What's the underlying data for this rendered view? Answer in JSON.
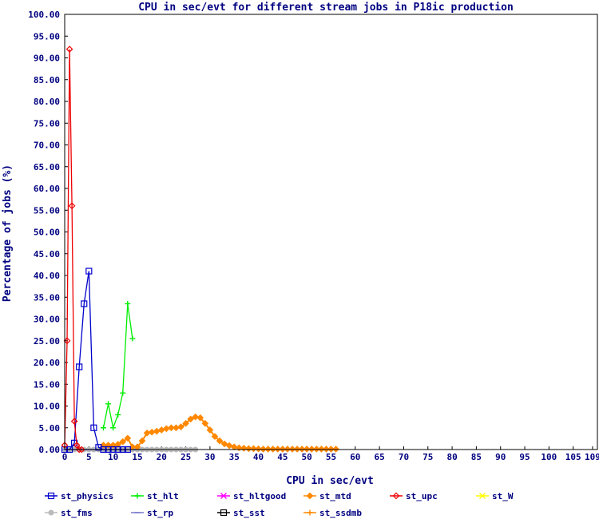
{
  "chart_data": {
    "type": "line",
    "title": "CPU in sec/evt for different stream jobs in P18ic production",
    "xlabel": "CPU in sec/evt",
    "ylabel": "Percentage of jobs (%)",
    "xlim": [
      0,
      110
    ],
    "ylim": [
      0,
      100
    ],
    "x_ticks": [
      "0",
      "5",
      "10",
      "15",
      "20",
      "25",
      "30",
      "35",
      "40",
      "45",
      "50",
      "55",
      "60",
      "65",
      "70",
      "75",
      "80",
      "85",
      "90",
      "95",
      "100",
      "105",
      "109"
    ],
    "y_ticks": [
      "0.00",
      "5.00",
      "10.00",
      "15.00",
      "20.00",
      "25.00",
      "30.00",
      "35.00",
      "40.00",
      "45.00",
      "50.00",
      "55.00",
      "60.00",
      "65.00",
      "70.00",
      "75.00",
      "80.00",
      "85.00",
      "90.00",
      "95.00",
      "100.00"
    ],
    "grid": false,
    "legend_position": "bottom",
    "series": [
      {
        "name": "st_physics",
        "color": "#0000cc",
        "marker": "square",
        "x": [
          0,
          1,
          2,
          3,
          4,
          5,
          6,
          7,
          8,
          9,
          10,
          11,
          12,
          13
        ],
        "y": [
          0,
          0,
          1.5,
          19,
          33.5,
          41,
          5,
          0.5,
          0,
          0,
          0,
          0,
          0,
          0
        ]
      },
      {
        "name": "st_hlt",
        "color": "#00ee00",
        "marker": "plus",
        "x": [
          8,
          9,
          10,
          11,
          12,
          13,
          14
        ],
        "y": [
          5,
          10.5,
          5,
          8,
          13,
          33.5,
          25.5
        ]
      },
      {
        "name": "st_hltgood",
        "color": "#ff00ff",
        "marker": "cross",
        "x": [],
        "y": []
      },
      {
        "name": "st_mtd",
        "color": "#ff8800",
        "marker": "diamond-filled",
        "x": [
          8,
          9,
          10,
          11,
          12,
          13,
          14,
          15,
          16,
          17,
          18,
          19,
          20,
          21,
          22,
          23,
          24,
          25,
          26,
          27,
          28,
          29,
          30,
          31,
          32,
          33,
          34,
          35,
          36,
          37,
          38,
          39,
          40,
          41,
          42,
          43,
          44,
          45,
          46,
          47,
          48,
          49,
          50,
          51,
          52,
          53,
          54,
          55,
          56
        ],
        "y": [
          1,
          1,
          1,
          1.2,
          1.8,
          2.6,
          0.6,
          0.6,
          2,
          3.8,
          4,
          4.2,
          4.5,
          4.8,
          5,
          5,
          5.2,
          6,
          7,
          7.5,
          7.3,
          6,
          4.5,
          3,
          2,
          1.3,
          0.9,
          0.6,
          0.4,
          0.3,
          0.2,
          0.2,
          0.15,
          0.1,
          0.1,
          0.1,
          0.1,
          0.1,
          0.1,
          0.1,
          0.1,
          0.1,
          0.1,
          0.1,
          0.1,
          0.1,
          0.1,
          0.1,
          0.1
        ]
      },
      {
        "name": "st_upc",
        "color": "#ee0000",
        "marker": "diamond",
        "x": [
          0,
          0.5,
          1,
          1.5,
          2,
          2.5,
          3,
          3.5
        ],
        "y": [
          1,
          25,
          92,
          56,
          6.5,
          1,
          0,
          0
        ]
      },
      {
        "name": "st_W",
        "color": "#ffff00",
        "marker": "cross",
        "x": [],
        "y": []
      },
      {
        "name": "st_fms",
        "color": "#bbbbbb",
        "marker": "circle",
        "x": [
          0,
          1,
          2,
          3,
          4,
          5,
          6,
          7,
          8,
          9,
          10,
          11,
          12,
          13,
          14,
          15,
          16,
          17,
          18,
          19,
          20,
          21,
          22,
          23,
          24,
          25,
          26,
          27
        ],
        "y": [
          0,
          0,
          0,
          0,
          0,
          0,
          0,
          0,
          0,
          0,
          0,
          0,
          0,
          0,
          0,
          0,
          0,
          0,
          0,
          0,
          0,
          0,
          0,
          0,
          0,
          0,
          0,
          0
        ]
      },
      {
        "name": "st_rp",
        "color": "#7777cc",
        "marker": "dash",
        "x": [
          0,
          1,
          2,
          3,
          4,
          5,
          6,
          7,
          8,
          9,
          10,
          11,
          12,
          13,
          14,
          15
        ],
        "y": [
          0,
          0,
          0,
          0,
          0,
          0,
          0,
          0,
          0,
          0,
          0,
          0,
          0,
          0,
          0,
          0
        ]
      },
      {
        "name": "st_sst",
        "color": "#000000",
        "marker": "square",
        "x": [],
        "y": []
      },
      {
        "name": "st_ssdmb",
        "color": "#ff8800",
        "marker": "plus",
        "x": [],
        "y": []
      }
    ]
  }
}
